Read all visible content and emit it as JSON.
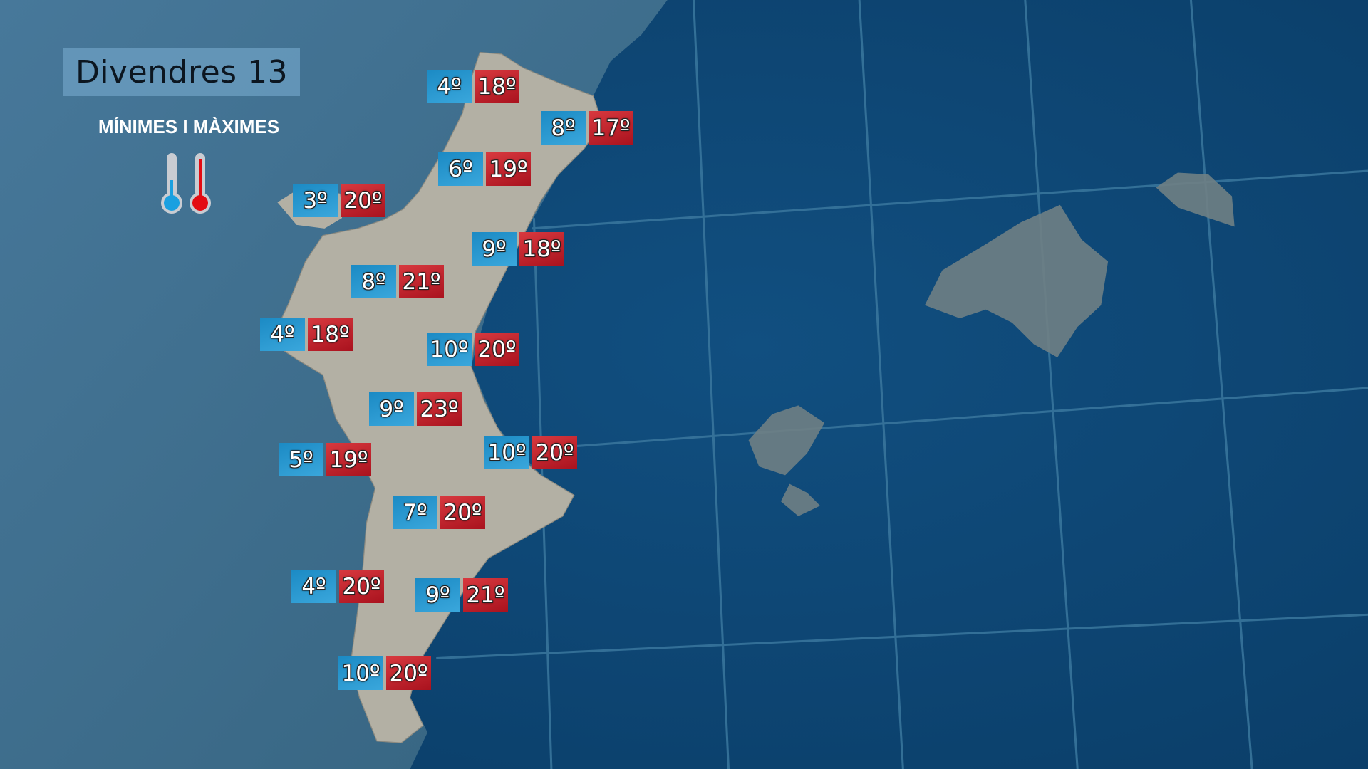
{
  "title": "Divendres 13",
  "subtitle": "MÍNIMES I MÀXIMES",
  "legend_icons": [
    "thermometer-cold-icon",
    "thermometer-hot-icon"
  ],
  "colors": {
    "min": "#2a9ad2",
    "max": "#c0232c",
    "sea": "#0d4876",
    "land": "#3e6e8e",
    "region": "#b3b0a4"
  },
  "labels": [
    {
      "min": "4º",
      "max": "18º"
    },
    {
      "min": "8º",
      "max": "17º"
    },
    {
      "min": "6º",
      "max": "19º"
    },
    {
      "min": "3º",
      "max": "20º"
    },
    {
      "min": "9º",
      "max": "18º"
    },
    {
      "min": "8º",
      "max": "21º"
    },
    {
      "min": "4º",
      "max": "18º"
    },
    {
      "min": "10º",
      "max": "20º"
    },
    {
      "min": "9º",
      "max": "23º"
    },
    {
      "min": "5º",
      "max": "19º"
    },
    {
      "min": "10º",
      "max": "20º"
    },
    {
      "min": "7º",
      "max": "20º"
    },
    {
      "min": "4º",
      "max": "20º"
    },
    {
      "min": "9º",
      "max": "21º"
    },
    {
      "min": "10º",
      "max": "20º"
    }
  ]
}
